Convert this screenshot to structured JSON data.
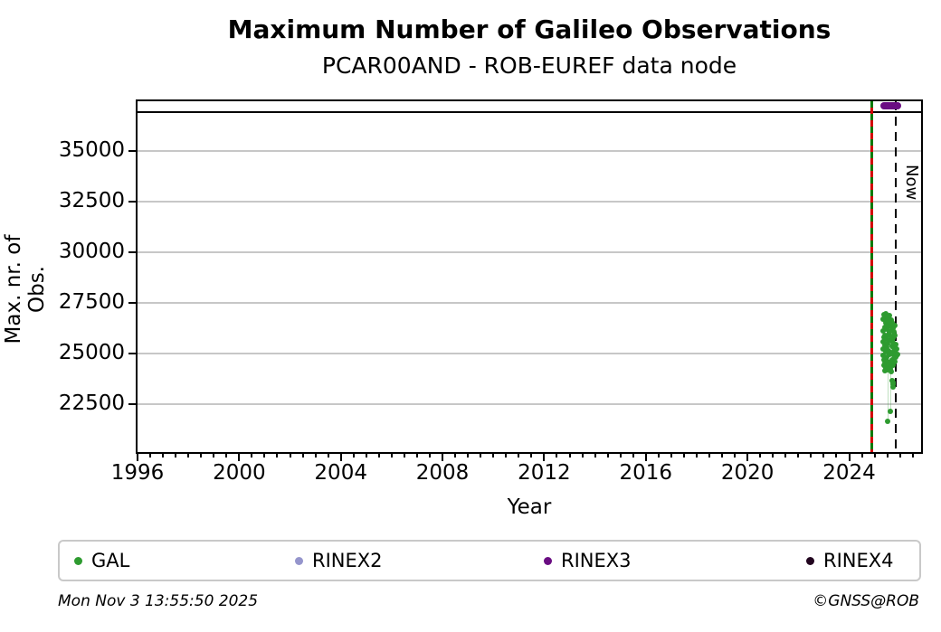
{
  "title": "Maximum Number of Galileo Observations",
  "subtitle": "PCAR00AND - ROB-EUREF data node",
  "footer": {
    "timestamp": "Mon Nov  3 13:55:50 2025",
    "credit": "©GNSS@ROB"
  },
  "chart_data": {
    "type": "scatter",
    "title": "Maximum Number of Galileo Observations",
    "subtitle": "PCAR00AND - ROB-EUREF data node",
    "xlabel": "Year",
    "ylabel": "Max. nr. of Obs.",
    "xlim": [
      1996,
      2026.83
    ],
    "ylim": [
      20130,
      37460
    ],
    "x_major_ticks": [
      1996,
      2000,
      2004,
      2008,
      2012,
      2016,
      2020,
      2024
    ],
    "x_minor_tick_step": 0.5,
    "y_ticks": [
      22500,
      25000,
      27500,
      30000,
      32500,
      35000
    ],
    "grid": "horizontal-light-gray",
    "annotations": {
      "hline": {
        "value": 36920,
        "color": "#000000"
      },
      "event_line": {
        "x": 2024.86,
        "colors": [
          "#067a06",
          "#d40000"
        ],
        "style": "green-red-dashed"
      },
      "now_line": {
        "x": 2025.84,
        "label": "Now",
        "style": "black-dashed"
      }
    },
    "legend": [
      {
        "label": "GAL",
        "color": "#2e9b30"
      },
      {
        "label": "RINEX2",
        "color": "#9595cc"
      },
      {
        "label": "RINEX3",
        "color": "#6a0d82"
      },
      {
        "label": "RINEX4",
        "color": "#22051f"
      }
    ],
    "series": [
      {
        "name": "GAL",
        "color": "#2e9b30",
        "marker_px": 6,
        "points": [
          [
            2025.32,
            25600
          ],
          [
            2025.33,
            26100
          ],
          [
            2025.34,
            24900
          ],
          [
            2025.35,
            26700
          ],
          [
            2025.35,
            25200
          ],
          [
            2025.36,
            24400
          ],
          [
            2025.37,
            26900
          ],
          [
            2025.37,
            25800
          ],
          [
            2025.38,
            24700
          ],
          [
            2025.39,
            26300
          ],
          [
            2025.4,
            25400
          ],
          [
            2025.4,
            24150
          ],
          [
            2025.41,
            26800
          ],
          [
            2025.42,
            25900
          ],
          [
            2025.42,
            24500
          ],
          [
            2025.43,
            26500
          ],
          [
            2025.44,
            25100
          ],
          [
            2025.45,
            26950
          ],
          [
            2025.45,
            24300
          ],
          [
            2025.46,
            25700
          ],
          [
            2025.47,
            26200
          ],
          [
            2025.48,
            24800
          ],
          [
            2025.48,
            26600
          ],
          [
            2025.49,
            25300
          ],
          [
            2025.5,
            24200
          ],
          [
            2025.5,
            26850
          ],
          [
            2025.51,
            25500
          ],
          [
            2025.52,
            26400
          ],
          [
            2025.53,
            24600
          ],
          [
            2025.54,
            25950
          ],
          [
            2025.55,
            26750
          ],
          [
            2025.55,
            24350
          ],
          [
            2025.56,
            25150
          ],
          [
            2025.57,
            26550
          ],
          [
            2025.58,
            24950
          ],
          [
            2025.59,
            26050
          ],
          [
            2025.6,
            24450
          ],
          [
            2025.6,
            26880
          ],
          [
            2025.61,
            25650
          ],
          [
            2025.62,
            24250
          ],
          [
            2025.63,
            26350
          ],
          [
            2025.64,
            25050
          ],
          [
            2025.65,
            26650
          ],
          [
            2025.65,
            24550
          ],
          [
            2025.66,
            25850
          ],
          [
            2025.67,
            24100
          ],
          [
            2025.68,
            26150
          ],
          [
            2025.69,
            25350
          ],
          [
            2025.7,
            26500
          ],
          [
            2025.7,
            24700
          ],
          [
            2025.71,
            25550
          ],
          [
            2025.72,
            26250
          ],
          [
            2025.73,
            24400
          ],
          [
            2025.74,
            25750
          ],
          [
            2025.75,
            26050
          ],
          [
            2025.76,
            24900
          ],
          [
            2025.77,
            25250
          ],
          [
            2025.78,
            26400
          ],
          [
            2025.79,
            24600
          ],
          [
            2025.8,
            25900
          ],
          [
            2025.81,
            25100
          ],
          [
            2025.82,
            24800
          ],
          [
            2025.83,
            25450
          ],
          [
            2025.85,
            25000
          ],
          [
            2025.87,
            24900
          ],
          [
            2025.88,
            25200
          ],
          [
            2025.9,
            24950
          ],
          [
            2025.7,
            23650
          ],
          [
            2025.72,
            23500
          ],
          [
            2025.74,
            23550
          ],
          [
            2025.71,
            23350
          ],
          [
            2025.62,
            22150
          ],
          [
            2025.5,
            21650
          ]
        ]
      },
      {
        "name": "RINEX2",
        "color": "#9595cc",
        "marker_px": 6,
        "points": []
      },
      {
        "name": "RINEX3",
        "color": "#6a0d82",
        "marker_px": 8,
        "points": [
          [
            2025.36,
            37230
          ],
          [
            2025.4,
            37230
          ],
          [
            2025.44,
            37230
          ],
          [
            2025.48,
            37230
          ],
          [
            2025.52,
            37230
          ],
          [
            2025.56,
            37230
          ],
          [
            2025.6,
            37230
          ],
          [
            2025.64,
            37230
          ],
          [
            2025.68,
            37230
          ],
          [
            2025.72,
            37230
          ],
          [
            2025.76,
            37230
          ],
          [
            2025.8,
            37230
          ],
          [
            2025.84,
            37230
          ],
          [
            2025.88,
            37230
          ],
          [
            2025.92,
            37230
          ]
        ]
      },
      {
        "name": "RINEX4",
        "color": "#22051f",
        "marker_px": 6,
        "points": []
      }
    ],
    "connectors": [
      {
        "x": 2025.5,
        "y1": 24100,
        "y2": 21650
      },
      {
        "x": 2025.62,
        "y1": 24100,
        "y2": 22150
      }
    ]
  }
}
